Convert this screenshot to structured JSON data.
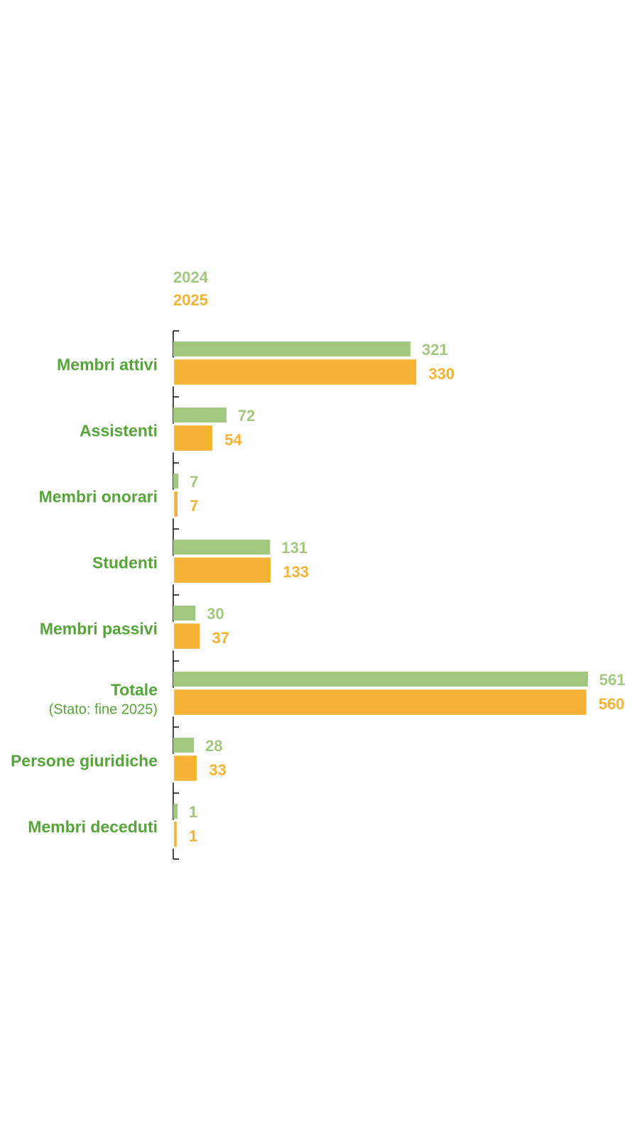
{
  "chart_data": {
    "type": "bar",
    "orientation": "horizontal",
    "categories": [
      "Membri attivi",
      "Assistenti",
      "Membri onorari",
      "Studenti",
      "Membri passivi",
      "Totale",
      "Persone giuridiche",
      "Membri deceduti"
    ],
    "category_notes": [
      "",
      "",
      "",
      "",
      "",
      "(Stato: fine 2025)",
      "",
      ""
    ],
    "series": [
      {
        "name": "2024",
        "color": "#a2c77f",
        "values": [
          321,
          72,
          7,
          131,
          30,
          561,
          28,
          1
        ]
      },
      {
        "name": "2025",
        "color": "#f6b234",
        "values": [
          330,
          54,
          7,
          133,
          37,
          560,
          33,
          1
        ]
      }
    ],
    "title": "",
    "xlabel": "",
    "ylabel": "",
    "xlim": [
      0,
      561
    ],
    "grid": false,
    "legend_position": "top-left",
    "label_color": "#56a43a"
  }
}
